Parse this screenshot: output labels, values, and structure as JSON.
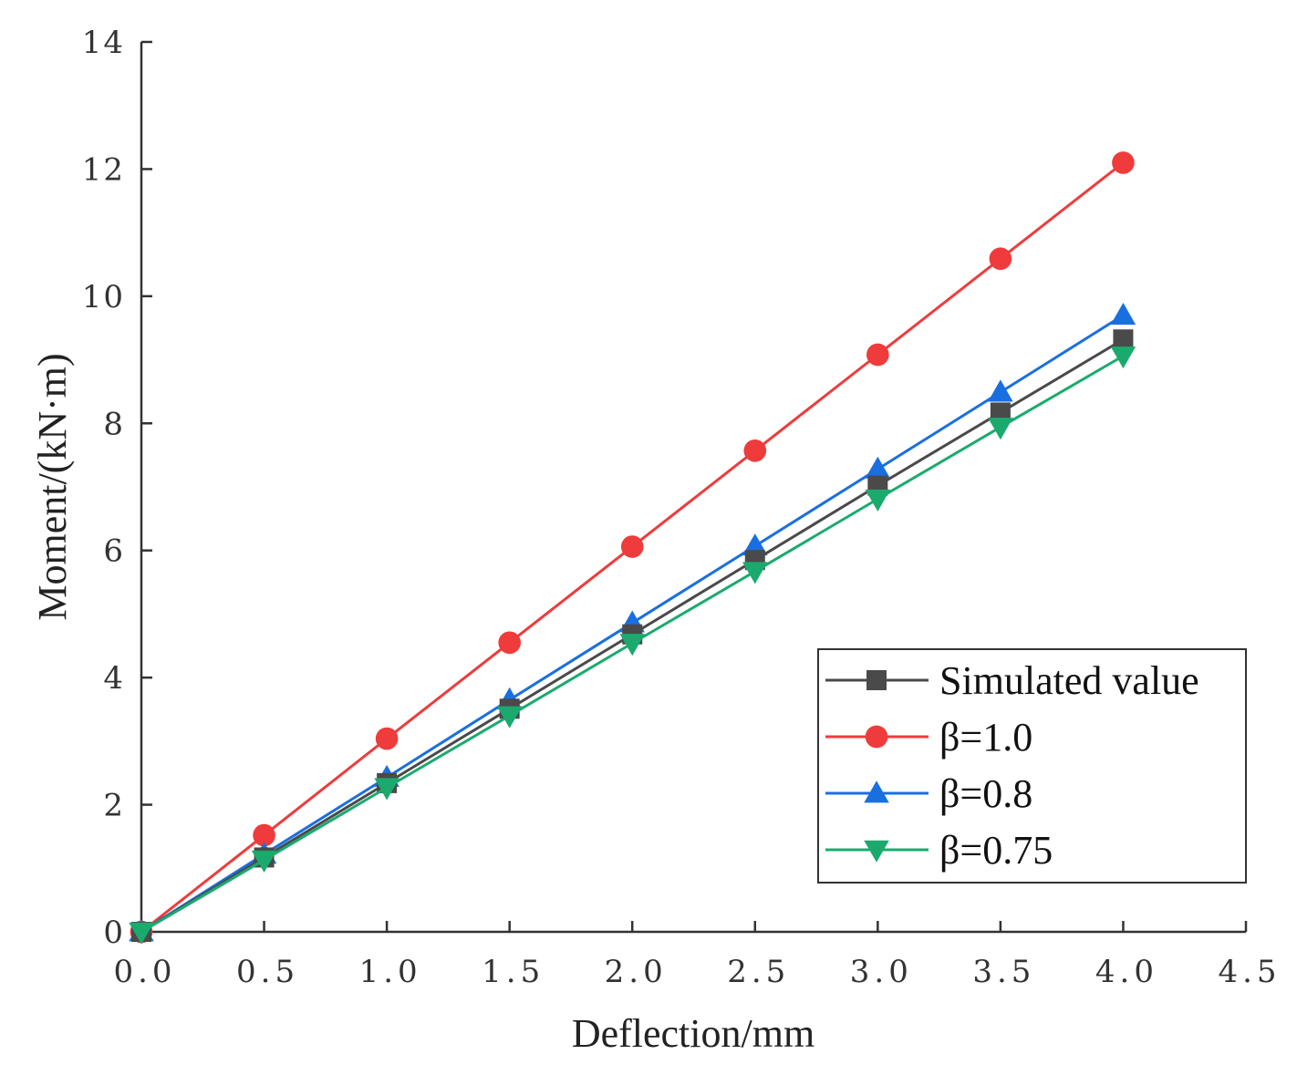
{
  "chart_data": {
    "type": "line",
    "xlabel": "Deflection/mm",
    "ylabel": "Moment/(kN·m)",
    "xlim": [
      0,
      4.5
    ],
    "ylim": [
      0,
      14
    ],
    "x_ticks": [
      "0.0",
      "0.5",
      "1.0",
      "1.5",
      "2.0",
      "2.5",
      "3.0",
      "3.5",
      "4.0",
      "4.5"
    ],
    "y_ticks": [
      "0",
      "2",
      "4",
      "6",
      "8",
      "10",
      "12",
      "14"
    ],
    "grid": false,
    "legend_position": "bottom-right",
    "x": [
      0,
      0.5,
      1.0,
      1.5,
      2.0,
      2.5,
      3.0,
      3.5,
      4.0
    ],
    "series": [
      {
        "name": "Simulated value",
        "color": "#4a4a4a",
        "marker": "square",
        "values": [
          0,
          1.17,
          2.34,
          3.51,
          4.68,
          5.85,
          7.02,
          8.17,
          9.32
        ]
      },
      {
        "name": "β=1.0",
        "color": "#ef3b3b",
        "marker": "circle",
        "values": [
          0,
          1.52,
          3.04,
          4.55,
          6.06,
          7.57,
          9.08,
          10.59,
          12.1
        ]
      },
      {
        "name": "β=0.8",
        "color": "#1a6fe0",
        "marker": "triangle-up",
        "values": [
          0,
          1.22,
          2.43,
          3.65,
          4.86,
          6.07,
          7.28,
          8.49,
          9.7
        ]
      },
      {
        "name": "β=0.75",
        "color": "#1aaa6e",
        "marker": "triangle-down",
        "values": [
          0,
          1.13,
          2.27,
          3.4,
          4.54,
          5.67,
          6.81,
          7.94,
          9.06
        ]
      }
    ]
  }
}
